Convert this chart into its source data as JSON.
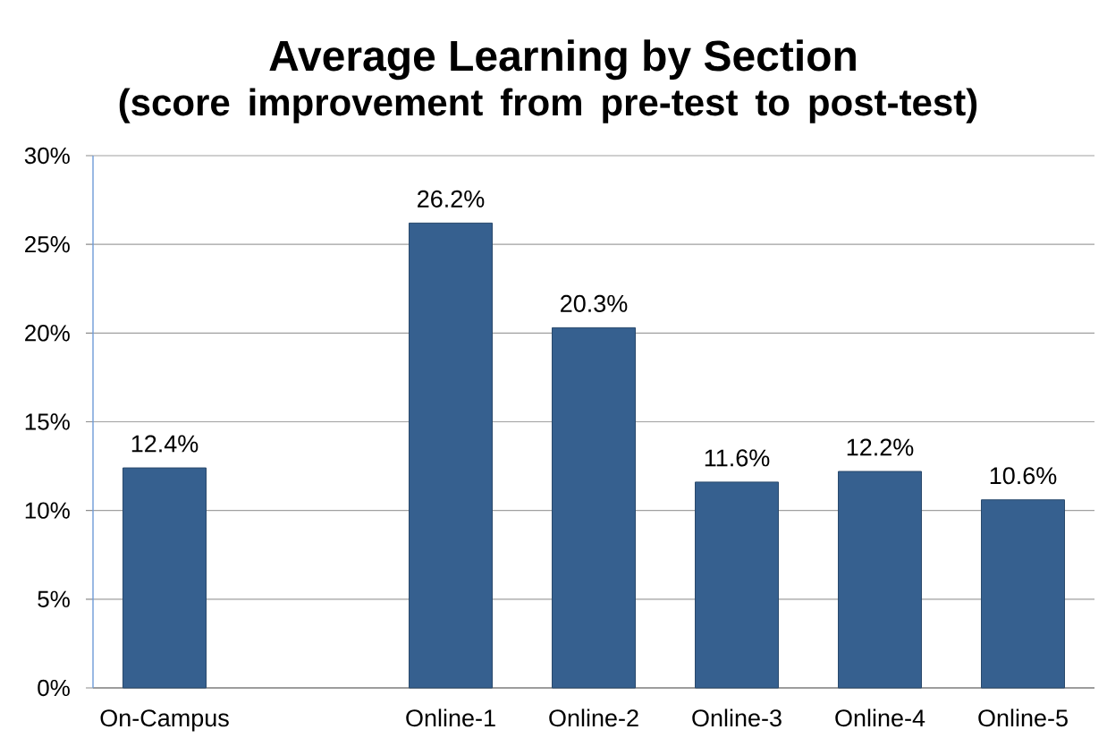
{
  "chart_data": {
    "type": "bar",
    "title": "Average Learning by Section",
    "subtitle": "(score improvement from pre-test to post-test)",
    "categories": [
      "On-Campus",
      null,
      "Online-1",
      "Online-2",
      "Online-3",
      "Online-4",
      "Online-5"
    ],
    "values": [
      12.4,
      null,
      26.2,
      20.3,
      11.6,
      12.2,
      10.6
    ],
    "value_labels": [
      "12.4%",
      null,
      "26.2%",
      "20.3%",
      "11.6%",
      "12.2%",
      "10.6%"
    ],
    "color": "#36608f",
    "ylim": [
      0,
      30
    ],
    "yticks": [
      {
        "value": 0,
        "label": "0%"
      },
      {
        "value": 5,
        "label": "5%"
      },
      {
        "value": 10,
        "label": "10%"
      },
      {
        "value": 15,
        "label": "15%"
      },
      {
        "value": 20,
        "label": "20%"
      },
      {
        "value": 25,
        "label": "25%"
      },
      {
        "value": 30,
        "label": "30%"
      }
    ],
    "grid": "y"
  }
}
